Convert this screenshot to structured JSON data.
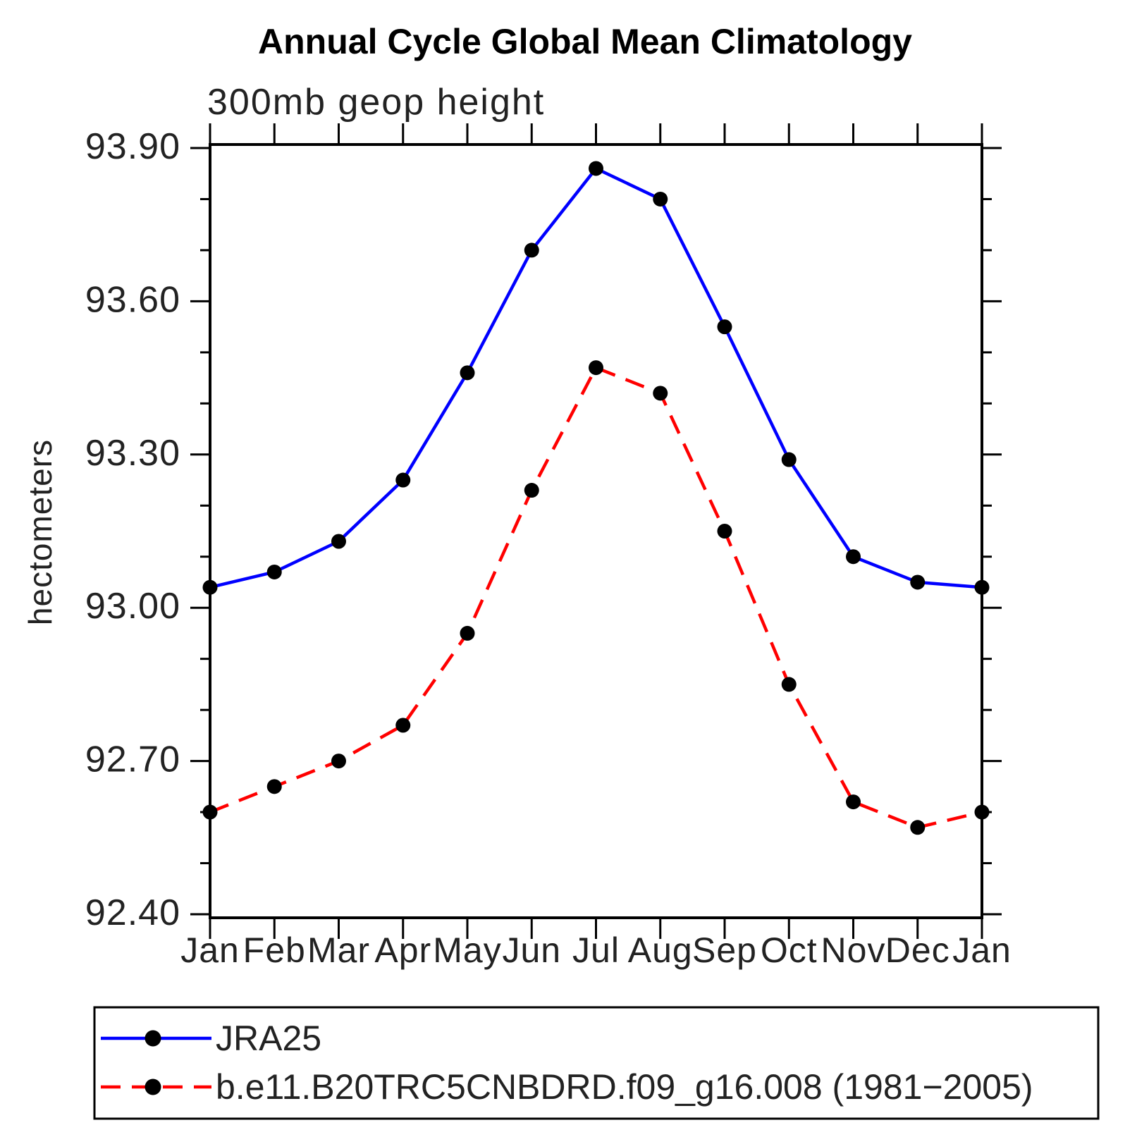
{
  "title": "Annual Cycle Global Mean Climatology",
  "subtitle": "300mb geop height",
  "y_axis": {
    "label": "hectometers",
    "tick_labels": [
      "93.90",
      "93.60",
      "93.30",
      "93.00",
      "92.70",
      "92.40"
    ]
  },
  "x_axis": {
    "tick_labels": [
      "Jan",
      "Feb",
      "Mar",
      "Apr",
      "May",
      "Jun",
      "Jul",
      "Aug",
      "Sep",
      "Oct",
      "Nov",
      "Dec",
      "Jan"
    ]
  },
  "legend": {
    "items": [
      {
        "label": "JRA25",
        "color": "#0000ff",
        "line_style": "solid",
        "marker_color": "#000000"
      },
      {
        "label": "b.e11.B20TRC5CNBDRD.f09_g16.008 (1981−2005)",
        "color": "#ff0000",
        "line_style": "dashed",
        "marker_color": "#000000"
      }
    ]
  },
  "chart_data": {
    "type": "line",
    "title": "Annual Cycle Global Mean Climatology",
    "subtitle": "300mb geop height",
    "ylabel": "hectometers",
    "xlabel": "",
    "categories": [
      "Jan",
      "Feb",
      "Mar",
      "Apr",
      "May",
      "Jun",
      "Jul",
      "Aug",
      "Sep",
      "Oct",
      "Nov",
      "Dec",
      "Jan"
    ],
    "series": [
      {
        "name": "JRA25",
        "color": "#0000ff",
        "line_style": "solid",
        "marker": "filled-circle",
        "marker_color": "#000000",
        "values": [
          93.04,
          93.07,
          93.13,
          93.25,
          93.46,
          93.7,
          93.86,
          93.8,
          93.55,
          93.29,
          93.1,
          93.05,
          93.04
        ]
      },
      {
        "name": "b.e11.B20TRC5CNBDRD.f09_g16.008 (1981−2005)",
        "color": "#ff0000",
        "line_style": "dashed",
        "marker": "filled-circle",
        "marker_color": "#000000",
        "values": [
          92.6,
          92.65,
          92.7,
          92.77,
          92.95,
          93.23,
          93.47,
          93.42,
          93.15,
          92.85,
          92.62,
          92.57,
          92.6
        ]
      }
    ],
    "ylim": [
      92.4,
      93.9
    ],
    "y_major_ticks": [
      93.9,
      93.6,
      93.3,
      93.0,
      92.7,
      92.4
    ],
    "y_minor_tick_interval": 0.1,
    "grid": false,
    "tick_style": "outward-all-four-sides",
    "legend_position": "boxed-below-left"
  }
}
